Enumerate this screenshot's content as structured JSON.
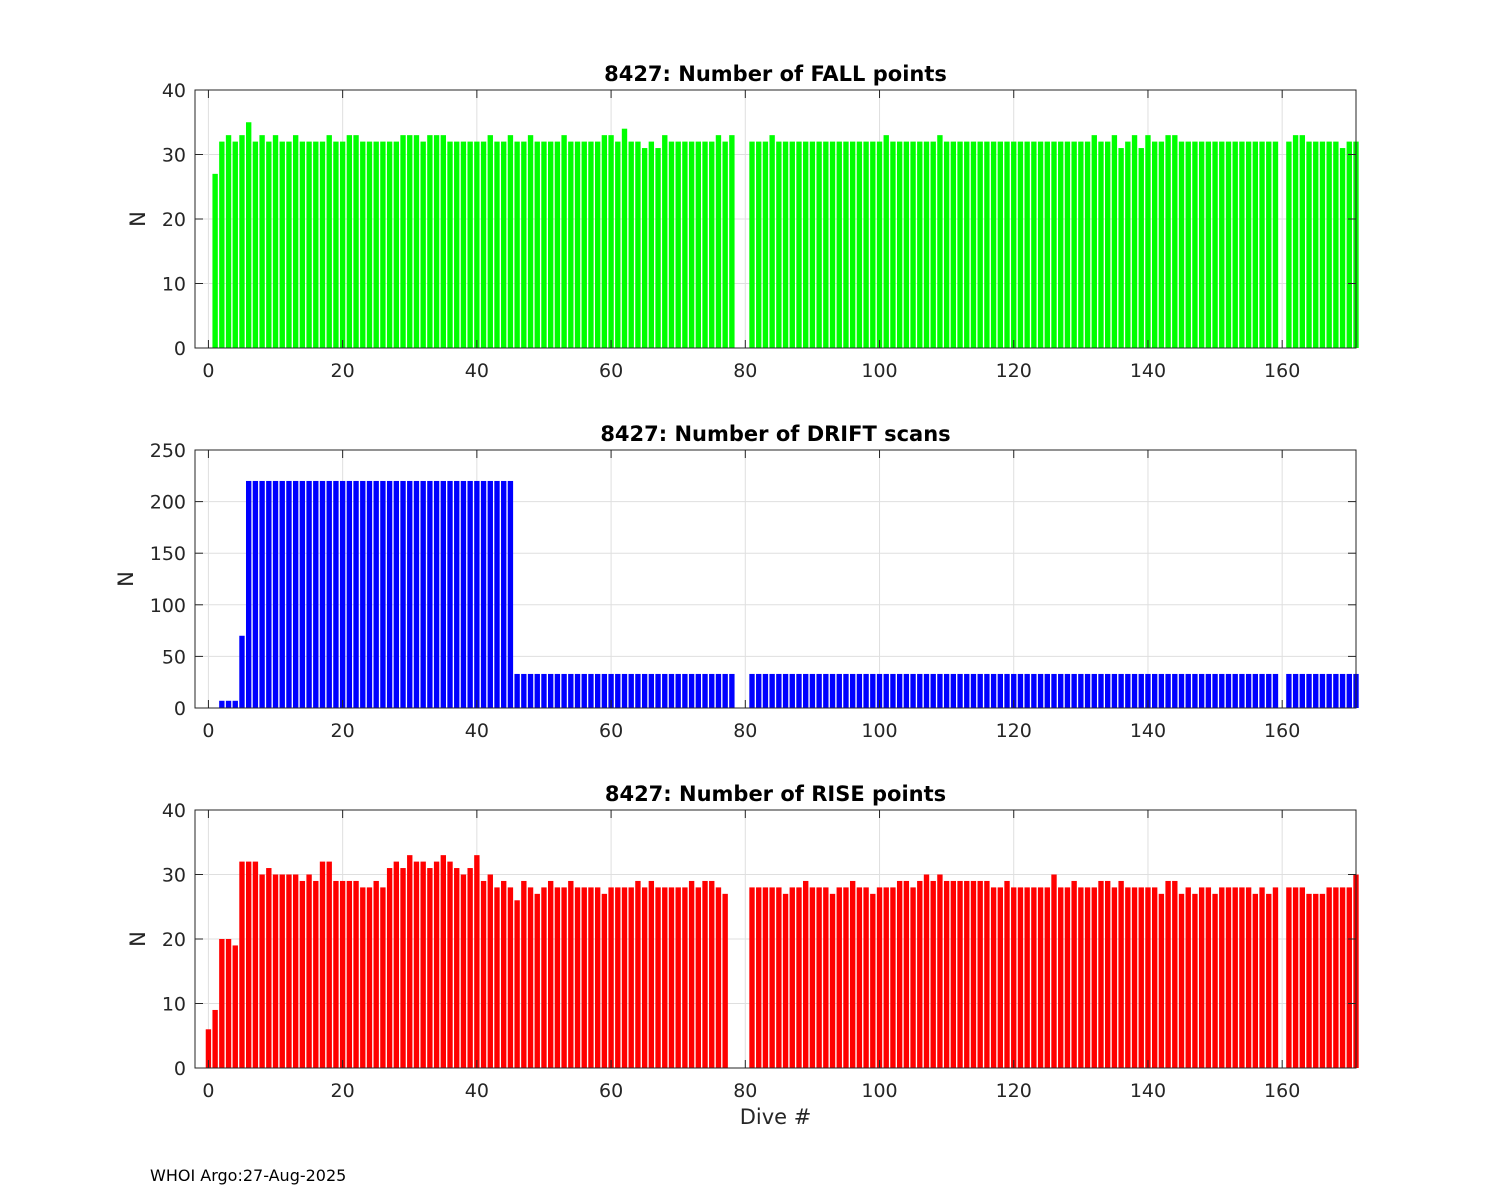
{
  "footer": "WHOI Argo:27-Aug-2025",
  "chart_data": [
    {
      "type": "bar",
      "title": "8427: Number of FALL points",
      "ylabel": "N",
      "xlabel": "",
      "xlim": [
        -2,
        171
      ],
      "ylim": [
        0,
        40
      ],
      "xticks": [
        0,
        20,
        40,
        60,
        80,
        100,
        120,
        140,
        160
      ],
      "yticks": [
        0,
        10,
        20,
        30,
        40
      ],
      "grid": true,
      "color": "#00ff00",
      "x_start": 1,
      "values": [
        27,
        32,
        33,
        32,
        33,
        35,
        32,
        33,
        32,
        33,
        32,
        32,
        33,
        32,
        32,
        32,
        32,
        33,
        32,
        32,
        33,
        33,
        32,
        32,
        32,
        32,
        32,
        32,
        33,
        33,
        33,
        32,
        33,
        33,
        33,
        32,
        32,
        32,
        32,
        32,
        32,
        33,
        32,
        32,
        33,
        32,
        32,
        33,
        32,
        32,
        32,
        32,
        33,
        32,
        32,
        32,
        32,
        32,
        33,
        33,
        32,
        34,
        32,
        32,
        31,
        32,
        31,
        33,
        32,
        32,
        32,
        32,
        32,
        32,
        32,
        33,
        32,
        33,
        null,
        null,
        32,
        32,
        32,
        33,
        32,
        32,
        32,
        32,
        32,
        32,
        32,
        32,
        32,
        32,
        32,
        32,
        32,
        32,
        32,
        32,
        33,
        32,
        32,
        32,
        32,
        32,
        32,
        32,
        33,
        32,
        32,
        32,
        32,
        32,
        32,
        32,
        32,
        32,
        32,
        32,
        32,
        32,
        32,
        32,
        32,
        32,
        32,
        32,
        32,
        32,
        32,
        33,
        32,
        32,
        33,
        31,
        32,
        33,
        31,
        33,
        32,
        32,
        33,
        33,
        32,
        32,
        32,
        32,
        32,
        32,
        32,
        32,
        32,
        32,
        32,
        32,
        32,
        32,
        32,
        null,
        32,
        33,
        33,
        32,
        32,
        32,
        32,
        32,
        31,
        32,
        32
      ]
    },
    {
      "type": "bar",
      "title": "8427: Number of DRIFT scans",
      "ylabel": "N",
      "xlabel": "",
      "xlim": [
        -2,
        171
      ],
      "ylim": [
        0,
        250
      ],
      "xticks": [
        0,
        20,
        40,
        60,
        80,
        100,
        120,
        140,
        160
      ],
      "yticks": [
        0,
        50,
        100,
        150,
        200,
        250
      ],
      "grid": true,
      "color": "#0000ff",
      "x_start": 1,
      "values": [
        null,
        7,
        7,
        7,
        70,
        220,
        220,
        220,
        220,
        220,
        220,
        220,
        220,
        220,
        220,
        220,
        220,
        220,
        220,
        220,
        220,
        220,
        220,
        220,
        220,
        220,
        220,
        220,
        220,
        220,
        220,
        220,
        220,
        220,
        220,
        220,
        220,
        220,
        220,
        220,
        220,
        220,
        220,
        220,
        220,
        33,
        33,
        33,
        33,
        33,
        33,
        33,
        33,
        33,
        33,
        33,
        33,
        33,
        33,
        33,
        33,
        33,
        33,
        33,
        33,
        33,
        33,
        33,
        33,
        33,
        33,
        33,
        33,
        33,
        33,
        33,
        33,
        33,
        null,
        null,
        33,
        33,
        33,
        33,
        33,
        33,
        33,
        33,
        33,
        33,
        33,
        33,
        33,
        33,
        33,
        33,
        33,
        33,
        33,
        33,
        33,
        33,
        33,
        33,
        33,
        33,
        33,
        33,
        33,
        33,
        33,
        33,
        33,
        33,
        33,
        33,
        33,
        33,
        33,
        33,
        33,
        33,
        33,
        33,
        33,
        33,
        33,
        33,
        33,
        33,
        33,
        33,
        33,
        33,
        33,
        33,
        33,
        33,
        33,
        33,
        33,
        33,
        33,
        33,
        33,
        33,
        33,
        33,
        33,
        33,
        33,
        33,
        33,
        33,
        33,
        33,
        33,
        33,
        33,
        null,
        33,
        33,
        33,
        33,
        33,
        33,
        33,
        33,
        33,
        33,
        33
      ]
    },
    {
      "type": "bar",
      "title": "8427: Number of RISE points",
      "ylabel": "N",
      "xlabel": "Dive #",
      "xlim": [
        -2,
        171
      ],
      "ylim": [
        0,
        40
      ],
      "xticks": [
        0,
        20,
        40,
        60,
        80,
        100,
        120,
        140,
        160
      ],
      "yticks": [
        0,
        10,
        20,
        30,
        40
      ],
      "grid": true,
      "color": "#ff0000",
      "x_start": 0,
      "values": [
        6,
        9,
        20,
        20,
        19,
        32,
        32,
        32,
        30,
        31,
        30,
        30,
        30,
        30,
        29,
        30,
        29,
        32,
        32,
        29,
        29,
        29,
        29,
        28,
        28,
        29,
        28,
        31,
        32,
        31,
        33,
        32,
        32,
        31,
        32,
        33,
        32,
        31,
        30,
        31,
        33,
        29,
        30,
        28,
        29,
        28,
        26,
        29,
        28,
        27,
        28,
        29,
        28,
        28,
        29,
        28,
        28,
        28,
        28,
        27,
        28,
        28,
        28,
        28,
        29,
        28,
        29,
        28,
        28,
        28,
        28,
        28,
        29,
        28,
        29,
        29,
        28,
        27,
        null,
        null,
        null,
        28,
        28,
        28,
        28,
        28,
        27,
        28,
        28,
        29,
        28,
        28,
        28,
        27,
        28,
        28,
        29,
        28,
        28,
        27,
        28,
        28,
        28,
        29,
        29,
        28,
        29,
        30,
        29,
        30,
        29,
        29,
        29,
        29,
        29,
        29,
        29,
        28,
        28,
        29,
        28,
        28,
        28,
        28,
        28,
        28,
        30,
        28,
        28,
        29,
        28,
        28,
        28,
        29,
        29,
        28,
        29,
        28,
        28,
        28,
        28,
        28,
        27,
        29,
        29,
        27,
        28,
        27,
        28,
        28,
        27,
        28,
        28,
        28,
        28,
        28,
        27,
        28,
        27,
        28,
        null,
        28,
        28,
        28,
        27,
        27,
        27,
        28,
        28,
        28,
        28,
        30
      ]
    }
  ]
}
